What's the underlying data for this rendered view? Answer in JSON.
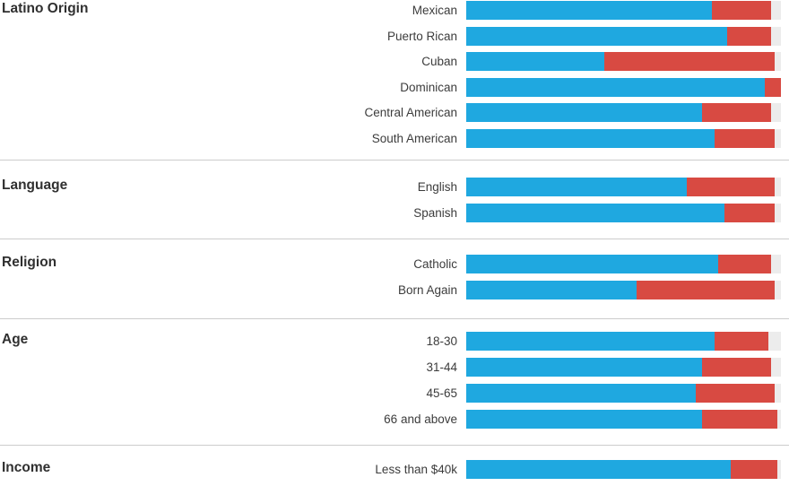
{
  "chart_data": {
    "type": "bar",
    "subtype": "horizontal-stacked",
    "orientation": "horizontal",
    "xlim": [
      0,
      100
    ],
    "units": "percent",
    "grid": false,
    "legend": "none",
    "series_names": [
      "blue",
      "red"
    ],
    "colors": {
      "blue": "#1fa8e0",
      "red": "#d84a42",
      "track": "#ececec",
      "separator": "#cccccc",
      "header_text": "#303030",
      "label_text": "#3c3c3c",
      "background": "#ffffff"
    },
    "groups": [
      {
        "header": "Latino Origin",
        "rows": [
          {
            "label": "Mexican",
            "blue": 78,
            "red": 19
          },
          {
            "label": "Puerto Rican",
            "blue": 83,
            "red": 14
          },
          {
            "label": "Cuban",
            "blue": 44,
            "red": 54
          },
          {
            "label": "Dominican",
            "blue": 95,
            "red": 5
          },
          {
            "label": "Central American",
            "blue": 75,
            "red": 22
          },
          {
            "label": "South American",
            "blue": 79,
            "red": 19
          }
        ]
      },
      {
        "header": "Language",
        "rows": [
          {
            "label": "English",
            "blue": 70,
            "red": 28
          },
          {
            "label": "Spanish",
            "blue": 82,
            "red": 16
          }
        ]
      },
      {
        "header": "Religion",
        "rows": [
          {
            "label": "Catholic",
            "blue": 80,
            "red": 17
          },
          {
            "label": "Born Again",
            "blue": 54,
            "red": 44
          }
        ]
      },
      {
        "header": "Age",
        "rows": [
          {
            "label": "18-30",
            "blue": 79,
            "red": 17
          },
          {
            "label": "31-44",
            "blue": 75,
            "red": 22
          },
          {
            "label": "45-65",
            "blue": 73,
            "red": 25
          },
          {
            "label": "66 and above",
            "blue": 75,
            "red": 24
          }
        ]
      },
      {
        "header": "Income",
        "rows": [
          {
            "label": "Less than $40k",
            "blue": 84,
            "red": 15
          }
        ]
      }
    ]
  }
}
